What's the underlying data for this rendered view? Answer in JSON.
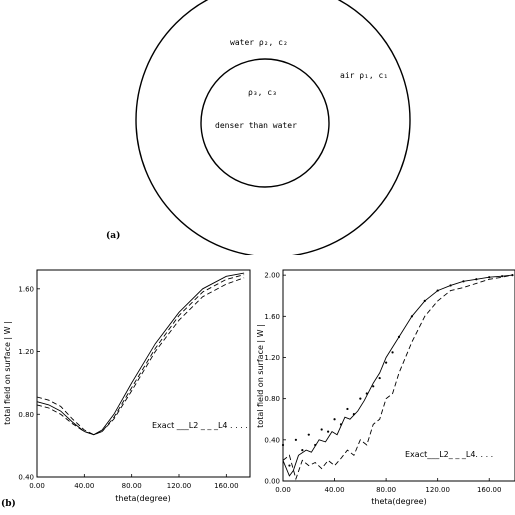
{
  "diagram": {
    "outer_label": "air ρ₁, c₁",
    "middle_label": "water ρ₂, c₂",
    "inner_label_1": "ρ₃, c₃",
    "inner_label_2": "denser than water",
    "panel_a": "(a)"
  },
  "panel_b": "(b)",
  "chart_data": [
    {
      "type": "line",
      "xlabel": "theta(degree)",
      "ylabel": "total field on surface | W |",
      "xlim": [
        0,
        180
      ],
      "ylim": [
        0.4,
        1.72
      ],
      "xticks": [
        "0.00",
        "40.00",
        "80.00",
        "120.00",
        "160.00"
      ],
      "xtick_values": [
        0,
        40,
        80,
        120,
        160
      ],
      "yticks": [
        "0.40",
        "0.80",
        "1.20",
        "1.60"
      ],
      "ytick_values": [
        0.4,
        0.8,
        1.2,
        1.6
      ],
      "legend_text": "Exact ___L2 _ _ _L4 . . . .",
      "series": [
        {
          "name": "Exact",
          "style": "solid",
          "x": [
            0,
            10,
            20,
            30,
            40,
            48,
            55,
            65,
            80,
            100,
            120,
            140,
            160,
            175
          ],
          "y": [
            0.88,
            0.86,
            0.82,
            0.75,
            0.69,
            0.67,
            0.7,
            0.8,
            1.0,
            1.25,
            1.45,
            1.6,
            1.68,
            1.7
          ]
        },
        {
          "name": "L2",
          "style": "dashed",
          "x": [
            0,
            10,
            20,
            30,
            40,
            48,
            55,
            65,
            80,
            100,
            120,
            140,
            160,
            175
          ],
          "y": [
            0.91,
            0.89,
            0.85,
            0.77,
            0.7,
            0.67,
            0.69,
            0.78,
            0.97,
            1.22,
            1.43,
            1.58,
            1.66,
            1.69
          ]
        },
        {
          "name": "L4",
          "style": "dashed",
          "x": [
            0,
            10,
            20,
            30,
            40,
            48,
            55,
            65,
            80,
            100,
            120,
            140,
            160,
            175
          ],
          "y": [
            0.86,
            0.84,
            0.8,
            0.74,
            0.69,
            0.67,
            0.69,
            0.77,
            0.95,
            1.2,
            1.4,
            1.55,
            1.63,
            1.67
          ]
        }
      ]
    },
    {
      "type": "line",
      "xlabel": "theta(degree)",
      "ylabel": "total field on surface | W |",
      "xlim": [
        0,
        180
      ],
      "ylim": [
        0,
        2.05
      ],
      "xticks": [
        "0.00",
        "40.00",
        "80.00",
        "120.00",
        "160.00"
      ],
      "xtick_values": [
        0,
        40,
        80,
        120,
        160
      ],
      "yticks": [
        "0.00",
        "0.40",
        "0.80",
        "1.20",
        "1.60",
        "2.00"
      ],
      "ytick_values": [
        0,
        0.4,
        0.8,
        1.2,
        1.6,
        2.0
      ],
      "legend_text": "Exact___L2_ _ _L4. . . .",
      "series": [
        {
          "name": "Exact",
          "style": "solid",
          "x": [
            0,
            5,
            8,
            12,
            18,
            22,
            28,
            33,
            38,
            42,
            48,
            52,
            58,
            63,
            70,
            75,
            80,
            90,
            100,
            110,
            120,
            130,
            140,
            150,
            160,
            170,
            178
          ],
          "y": [
            0.2,
            0.05,
            0.1,
            0.25,
            0.3,
            0.28,
            0.4,
            0.38,
            0.48,
            0.45,
            0.62,
            0.6,
            0.68,
            0.78,
            0.95,
            1.05,
            1.2,
            1.4,
            1.6,
            1.75,
            1.85,
            1.9,
            1.94,
            1.96,
            1.98,
            1.99,
            2.0
          ]
        },
        {
          "name": "L2",
          "style": "dashed",
          "x": [
            0,
            5,
            10,
            15,
            20,
            25,
            30,
            35,
            40,
            45,
            50,
            55,
            60,
            65,
            70,
            75,
            80,
            85,
            90,
            100,
            110,
            120,
            130,
            140,
            150,
            160,
            170,
            178
          ],
          "y": [
            0.2,
            0.25,
            0.02,
            0.2,
            0.15,
            0.18,
            0.12,
            0.2,
            0.15,
            0.22,
            0.3,
            0.25,
            0.4,
            0.35,
            0.55,
            0.6,
            0.8,
            0.85,
            1.05,
            1.35,
            1.6,
            1.75,
            1.85,
            1.88,
            1.92,
            1.96,
            1.98,
            2.0
          ]
        },
        {
          "name": "L4",
          "style": "dotted",
          "x": [
            0,
            5,
            10,
            15,
            20,
            25,
            30,
            35,
            40,
            45,
            50,
            55,
            60,
            65,
            70,
            75,
            80,
            85,
            90,
            100,
            110,
            120,
            130,
            140,
            150,
            160,
            170,
            178
          ],
          "y": [
            0.35,
            0.15,
            0.4,
            0.3,
            0.45,
            0.35,
            0.5,
            0.48,
            0.6,
            0.55,
            0.7,
            0.65,
            0.8,
            0.85,
            0.92,
            1.0,
            1.15,
            1.25,
            1.4,
            1.6,
            1.75,
            1.85,
            1.9,
            1.94,
            1.96,
            1.98,
            1.99,
            2.0
          ]
        }
      ]
    }
  ]
}
